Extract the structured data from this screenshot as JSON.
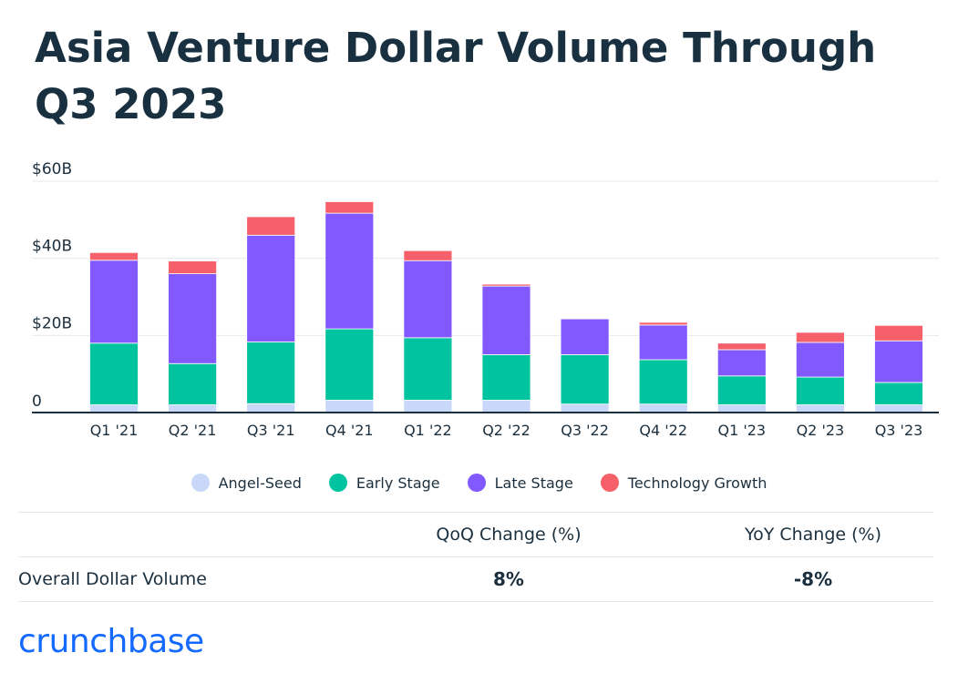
{
  "title": "Asia Venture Dollar Volume Through Q3 2023",
  "colors": {
    "angel_seed": "#c9d8f8",
    "early_stage": "#00c3a0",
    "late_stage": "#8159ff",
    "technology_growth": "#f5606a",
    "title_text": "#18303f",
    "brand": "#146aff"
  },
  "chart_data": {
    "type": "bar",
    "stacked": true,
    "title": "Asia Venture Dollar Volume Through Q3 2023",
    "categories": [
      "Q1 '21",
      "Q2 '21",
      "Q3 '21",
      "Q4 '21",
      "Q1 '22",
      "Q2 '22",
      "Q3 '22",
      "Q4 '22",
      "Q1 '23",
      "Q2 '23",
      "Q3 '23"
    ],
    "series": [
      {
        "name": "Angel-Seed",
        "key": "angel_seed",
        "values": [
          2.0,
          2.0,
          2.3,
          3.2,
          3.2,
          3.2,
          2.2,
          2.2,
          2.0,
          2.0,
          2.0
        ]
      },
      {
        "name": "Early Stage",
        "key": "early_stage",
        "values": [
          16.0,
          10.7,
          16.0,
          18.5,
          16.2,
          11.8,
          12.8,
          11.5,
          7.5,
          7.2,
          5.8
        ]
      },
      {
        "name": "Late Stage",
        "key": "late_stage",
        "values": [
          21.5,
          23.3,
          27.7,
          30.0,
          20.0,
          17.8,
          9.3,
          9.0,
          6.8,
          9.0,
          10.8
        ]
      },
      {
        "name": "Technology Growth",
        "key": "technology_growth",
        "values": [
          2.0,
          3.3,
          4.8,
          3.0,
          2.6,
          0.5,
          0.2,
          0.7,
          1.7,
          2.6,
          4.0
        ]
      }
    ],
    "y_ticks": [
      {
        "value": 0,
        "label": "0"
      },
      {
        "value": 20,
        "label": "$20B"
      },
      {
        "value": 40,
        "label": "$40B"
      },
      {
        "value": 60,
        "label": "$60B"
      }
    ],
    "ylim": [
      0,
      60
    ],
    "xlabel": "",
    "ylabel": "",
    "grid": true,
    "legend_position": "bottom-center"
  },
  "legend": [
    {
      "label": "Angel-Seed",
      "color_key": "angel_seed"
    },
    {
      "label": "Early Stage",
      "color_key": "early_stage"
    },
    {
      "label": "Late Stage",
      "color_key": "late_stage"
    },
    {
      "label": "Technology Growth",
      "color_key": "technology_growth"
    }
  ],
  "table": {
    "headers": [
      "",
      "QoQ Change (%)",
      "YoY Change (%)"
    ],
    "rows": [
      {
        "label": "Overall Dollar Volume",
        "qoq": "8%",
        "yoy": "-8%"
      }
    ]
  },
  "brand": "crunchbase"
}
